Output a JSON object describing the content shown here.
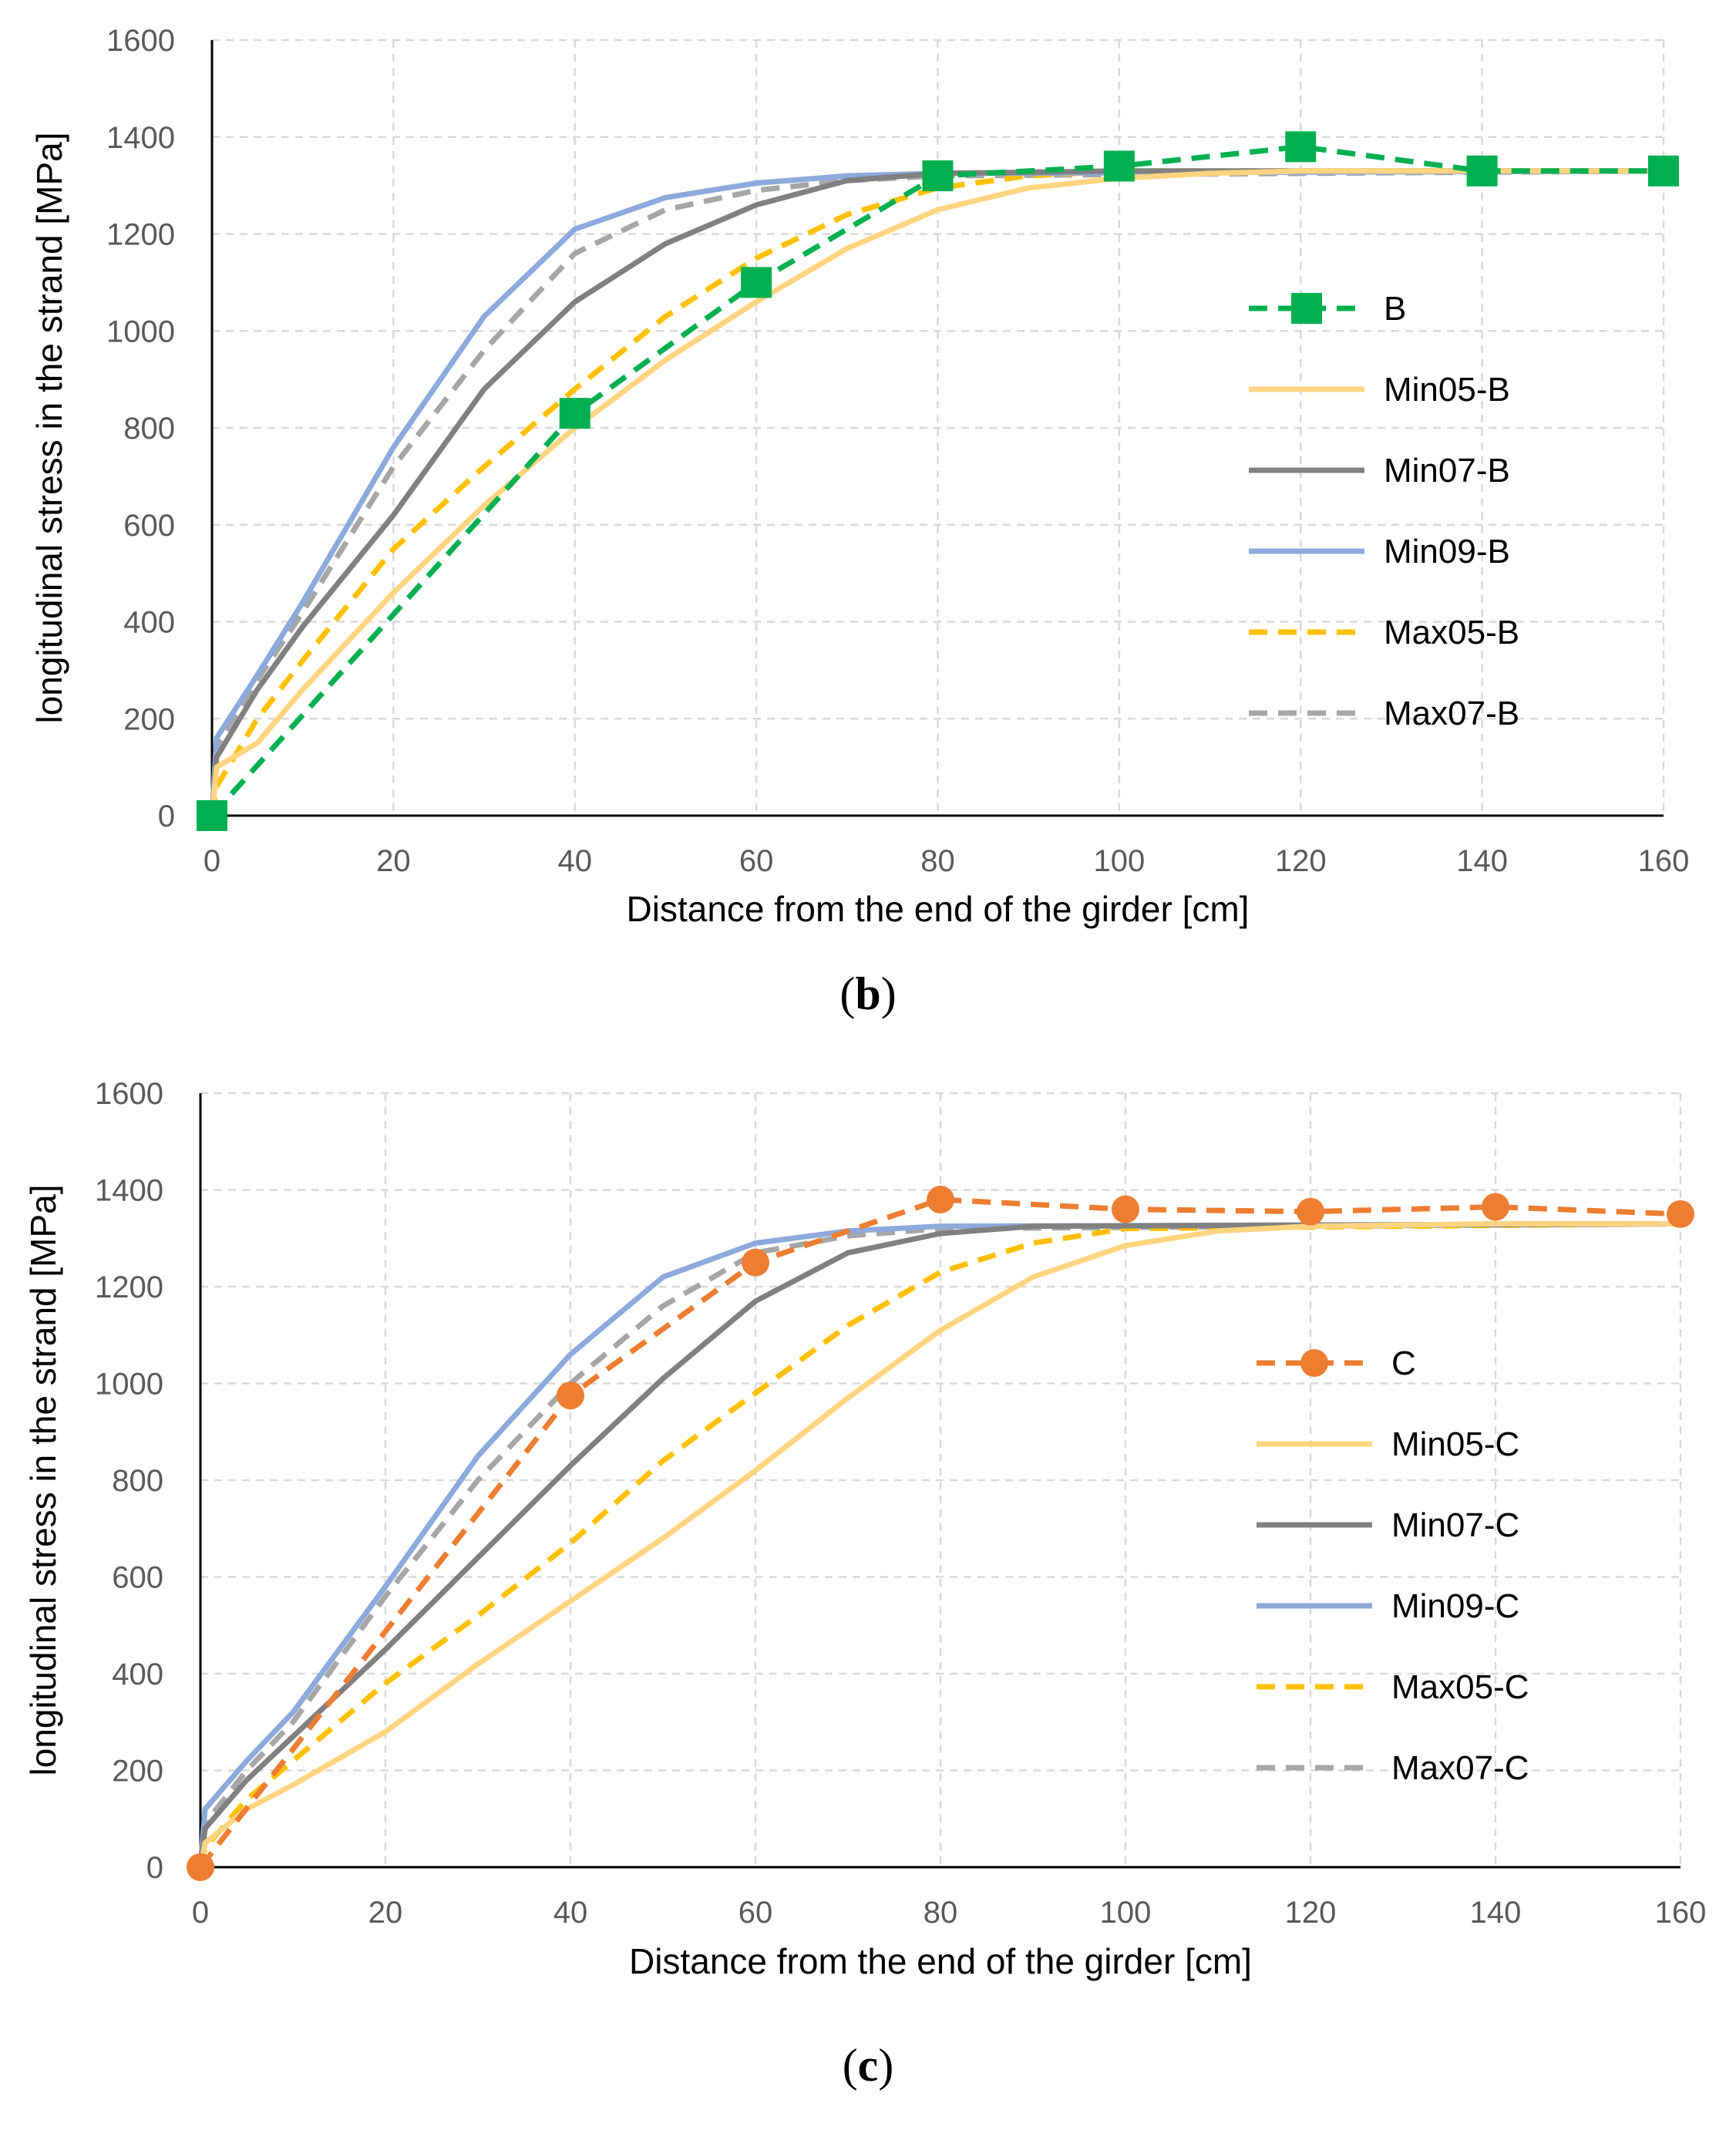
{
  "captions": {
    "b": "b",
    "c": "c"
  },
  "chart_data": [
    {
      "type": "line",
      "panel": "b",
      "xlabel": "Distance from the end of the girder [cm]",
      "ylabel": "longitudinal stress in the strand [MPa]",
      "xlim": [
        0,
        160
      ],
      "ylim": [
        0,
        1600
      ],
      "xticks": [
        0,
        20,
        40,
        60,
        80,
        100,
        120,
        140,
        160
      ],
      "yticks": [
        0,
        200,
        400,
        600,
        800,
        1000,
        1200,
        1400,
        1600
      ],
      "grid": true,
      "legend": "right",
      "series": [
        {
          "name": "B",
          "color": "#00B050",
          "dash": "dashed",
          "marker": "square",
          "x": [
            0,
            40,
            60,
            80,
            100,
            120,
            140,
            160
          ],
          "y": [
            0,
            830,
            1100,
            1320,
            1340,
            1380,
            1330,
            1330
          ]
        },
        {
          "name": "Min05-B",
          "color": "#FFD480",
          "dash": "solid",
          "x": [
            0,
            0.5,
            5,
            10,
            20,
            30,
            40,
            50,
            60,
            70,
            80,
            90,
            100,
            110,
            120,
            140,
            160
          ],
          "y": [
            0,
            100,
            150,
            260,
            460,
            640,
            800,
            940,
            1060,
            1170,
            1250,
            1295,
            1315,
            1325,
            1330,
            1330,
            1330
          ]
        },
        {
          "name": "Min07-B",
          "color": "#808080",
          "dash": "solid",
          "x": [
            0,
            0.5,
            5,
            10,
            20,
            30,
            40,
            50,
            60,
            70,
            80,
            100,
            160
          ],
          "y": [
            0,
            120,
            260,
            390,
            620,
            880,
            1060,
            1180,
            1260,
            1310,
            1325,
            1330,
            1330
          ]
        },
        {
          "name": "Min09-B",
          "color": "#8EA9DB",
          "dash": "solid",
          "x": [
            0,
            0.5,
            5,
            10,
            20,
            30,
            40,
            50,
            60,
            70,
            80,
            160
          ],
          "y": [
            0,
            160,
            290,
            440,
            760,
            1030,
            1210,
            1275,
            1305,
            1320,
            1325,
            1330
          ]
        },
        {
          "name": "Max05-B",
          "color": "#FFC000",
          "dash": "dashed",
          "x": [
            0,
            0.5,
            5,
            10,
            20,
            30,
            40,
            50,
            60,
            70,
            80,
            90,
            100,
            160
          ],
          "y": [
            0,
            60,
            200,
            320,
            550,
            720,
            880,
            1030,
            1150,
            1240,
            1295,
            1320,
            1330,
            1330
          ]
        },
        {
          "name": "Max07-B",
          "color": "#A6A6A6",
          "dash": "dashed",
          "x": [
            0,
            0.5,
            5,
            10,
            20,
            30,
            40,
            50,
            60,
            70,
            80,
            160
          ],
          "y": [
            0,
            140,
            280,
            420,
            720,
            960,
            1160,
            1250,
            1290,
            1310,
            1320,
            1330
          ]
        }
      ]
    },
    {
      "type": "line",
      "panel": "c",
      "xlabel": "Distance from the end of the girder [cm]",
      "ylabel": "longitudinal stress in the strand [MPa]",
      "xlim": [
        0,
        160
      ],
      "ylim": [
        0,
        1600
      ],
      "xticks": [
        0,
        20,
        40,
        60,
        80,
        100,
        120,
        140,
        160
      ],
      "yticks": [
        0,
        200,
        400,
        600,
        800,
        1000,
        1200,
        1400,
        1600
      ],
      "grid": true,
      "legend": "right",
      "series": [
        {
          "name": "C",
          "color": "#ED7D31",
          "dash": "dashed",
          "marker": "circle",
          "x": [
            0,
            40,
            60,
            80,
            100,
            120,
            140,
            160
          ],
          "y": [
            0,
            975,
            1250,
            1380,
            1360,
            1355,
            1365,
            1350
          ]
        },
        {
          "name": "Min05-C",
          "color": "#FFD480",
          "dash": "solid",
          "x": [
            0,
            0.5,
            5,
            10,
            20,
            30,
            40,
            50,
            60,
            70,
            80,
            90,
            100,
            110,
            120,
            140,
            160
          ],
          "y": [
            0,
            50,
            120,
            170,
            280,
            420,
            550,
            680,
            820,
            970,
            1110,
            1220,
            1285,
            1315,
            1325,
            1330,
            1330
          ]
        },
        {
          "name": "Min07-C",
          "color": "#808080",
          "dash": "solid",
          "x": [
            0,
            0.5,
            5,
            10,
            20,
            30,
            40,
            50,
            60,
            70,
            80,
            90,
            160
          ],
          "y": [
            0,
            80,
            180,
            270,
            450,
            640,
            830,
            1010,
            1170,
            1270,
            1310,
            1325,
            1330
          ]
        },
        {
          "name": "Min09-C",
          "color": "#8EA9DB",
          "dash": "solid",
          "x": [
            0,
            0.5,
            5,
            10,
            20,
            30,
            40,
            50,
            60,
            70,
            80,
            160
          ],
          "y": [
            0,
            120,
            220,
            320,
            580,
            850,
            1060,
            1220,
            1290,
            1315,
            1325,
            1330
          ]
        },
        {
          "name": "Max05-C",
          "color": "#FFC000",
          "dash": "dashed",
          "x": [
            0,
            0.5,
            5,
            10,
            20,
            30,
            40,
            50,
            60,
            70,
            80,
            90,
            100,
            160
          ],
          "y": [
            0,
            40,
            140,
            220,
            380,
            520,
            670,
            840,
            980,
            1120,
            1230,
            1290,
            1320,
            1330
          ]
        },
        {
          "name": "Max07-C",
          "color": "#A6A6A6",
          "dash": "dashed",
          "x": [
            0,
            0.5,
            5,
            10,
            20,
            30,
            40,
            50,
            60,
            70,
            80,
            160
          ],
          "y": [
            0,
            90,
            200,
            300,
            560,
            800,
            1000,
            1160,
            1270,
            1305,
            1320,
            1330
          ]
        }
      ]
    }
  ]
}
